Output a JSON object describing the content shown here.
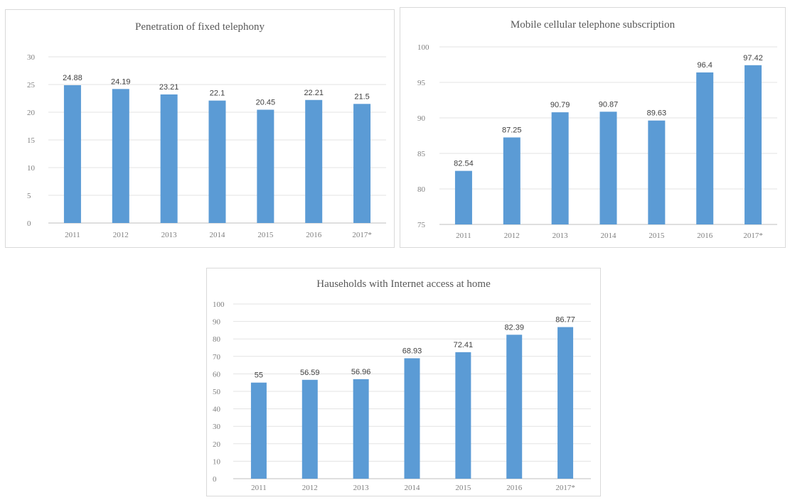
{
  "chart_data": [
    {
      "type": "bar",
      "title": "Penetration of fixed telephony",
      "categories": [
        "2011",
        "2012",
        "2013",
        "2014",
        "2015",
        "2016",
        "2017*"
      ],
      "values": [
        24.88,
        24.19,
        23.21,
        22.1,
        20.45,
        22.21,
        21.5
      ],
      "value_labels": [
        "24.88",
        "24.19",
        "23.21",
        "22.1",
        "20.45",
        "22.21",
        "21.5"
      ],
      "ylim": [
        0,
        30
      ],
      "yticks": [
        0,
        5,
        10,
        15,
        20,
        25,
        30
      ],
      "grid": true,
      "color": "#5b9bd5"
    },
    {
      "type": "bar",
      "title": "Mobile cellular telephone subscription",
      "categories": [
        "2011",
        "2012",
        "2013",
        "2014",
        "2015",
        "2016",
        "2017*"
      ],
      "values": [
        82.54,
        87.25,
        90.79,
        90.87,
        89.63,
        96.4,
        97.42
      ],
      "value_labels": [
        "82.54",
        "87.25",
        "90.79",
        "90.87",
        "89.63",
        "96.4",
        "97.42"
      ],
      "ylim": [
        75,
        100
      ],
      "yticks": [
        75,
        80,
        85,
        90,
        95,
        100
      ],
      "grid": true,
      "color": "#5b9bd5"
    },
    {
      "type": "bar",
      "title": "Hauseholds with Internet access at home",
      "categories": [
        "2011",
        "2012",
        "2013",
        "2014",
        "2015",
        "2016",
        "2017*"
      ],
      "values": [
        55,
        56.59,
        56.96,
        68.93,
        72.41,
        82.39,
        86.77
      ],
      "value_labels": [
        "55",
        "56.59",
        "56.96",
        "68.93",
        "72.41",
        "82.39",
        "86.77"
      ],
      "ylim": [
        0,
        100
      ],
      "yticks": [
        0,
        10,
        20,
        30,
        40,
        50,
        60,
        70,
        80,
        90,
        100
      ],
      "grid": true,
      "color": "#5b9bd5"
    }
  ]
}
